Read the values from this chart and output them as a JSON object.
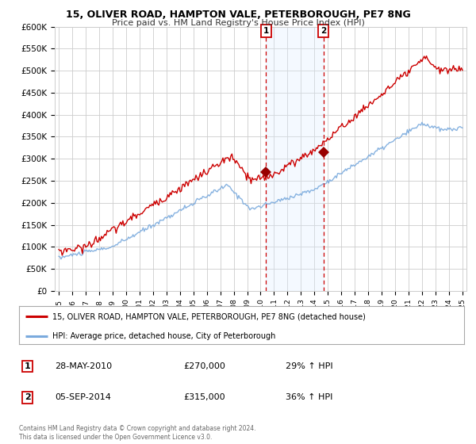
{
  "title": "15, OLIVER ROAD, HAMPTON VALE, PETERBOROUGH, PE7 8NG",
  "subtitle": "Price paid vs. HM Land Registry's House Price Index (HPI)",
  "legend_line1": "15, OLIVER ROAD, HAMPTON VALE, PETERBOROUGH, PE7 8NG (detached house)",
  "legend_line2": "HPI: Average price, detached house, City of Peterborough",
  "sale1_date": "28-MAY-2010",
  "sale1_price": "£270,000",
  "sale1_hpi": "29% ↑ HPI",
  "sale1_year": 2010.41,
  "sale1_value": 270000,
  "sale2_date": "05-SEP-2014",
  "sale2_price": "£315,000",
  "sale2_hpi": "36% ↑ HPI",
  "sale2_year": 2014.67,
  "sale2_value": 315000,
  "hpi_color": "#7aaadd",
  "price_color": "#cc0000",
  "marker_color": "#990000",
  "vline_color": "#cc0000",
  "shade_color": "#ddeeff",
  "grid_color": "#cccccc",
  "background_color": "#ffffff",
  "footnote": "Contains HM Land Registry data © Crown copyright and database right 2024.\nThis data is licensed under the Open Government Licence v3.0.",
  "ylim": [
    0,
    600000
  ],
  "yticks": [
    0,
    50000,
    100000,
    150000,
    200000,
    250000,
    300000,
    350000,
    400000,
    450000,
    500000,
    550000,
    600000
  ],
  "xlim_start": 1994.7,
  "xlim_end": 2025.3
}
